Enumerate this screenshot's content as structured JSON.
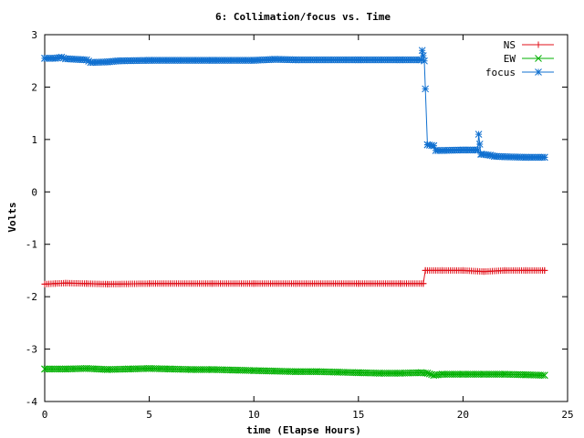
{
  "chart_data": {
    "type": "line",
    "title": "6: Collimation/focus vs. Time",
    "xlabel": "time (Elapse Hours)",
    "ylabel": "Volts",
    "xlim": [
      0,
      25
    ],
    "ylim": [
      -4,
      3
    ],
    "x_ticks": [
      "0",
      "5",
      "10",
      "15",
      "20",
      "25"
    ],
    "y_ticks": [
      "-4",
      "-3",
      "-2",
      "-1",
      "0",
      "1",
      "2",
      "3"
    ],
    "grid": false,
    "legend_position": "top-right",
    "series": [
      {
        "name": "NS",
        "color": "#e0101a",
        "marker": "plus",
        "points": [
          [
            0,
            -1.76
          ],
          [
            0.5,
            -1.75
          ],
          [
            1,
            -1.74
          ],
          [
            2,
            -1.75
          ],
          [
            3,
            -1.76
          ],
          [
            5,
            -1.75
          ],
          [
            8,
            -1.75
          ],
          [
            10,
            -1.75
          ],
          [
            12,
            -1.75
          ],
          [
            15,
            -1.75
          ],
          [
            17,
            -1.75
          ],
          [
            18.1,
            -1.75
          ],
          [
            18.2,
            -1.5
          ],
          [
            19,
            -1.5
          ],
          [
            20,
            -1.5
          ],
          [
            21,
            -1.52
          ],
          [
            22,
            -1.5
          ],
          [
            23,
            -1.5
          ],
          [
            23.9,
            -1.5
          ]
        ]
      },
      {
        "name": "EW",
        "color": "#00b000",
        "marker": "cross",
        "points": [
          [
            0,
            -3.38
          ],
          [
            1,
            -3.38
          ],
          [
            2,
            -3.37
          ],
          [
            3,
            -3.39
          ],
          [
            4,
            -3.38
          ],
          [
            5,
            -3.37
          ],
          [
            6,
            -3.38
          ],
          [
            7,
            -3.39
          ],
          [
            8,
            -3.39
          ],
          [
            9,
            -3.4
          ],
          [
            10,
            -3.41
          ],
          [
            11,
            -3.42
          ],
          [
            12,
            -3.43
          ],
          [
            13,
            -3.43
          ],
          [
            14,
            -3.44
          ],
          [
            15,
            -3.45
          ],
          [
            16,
            -3.46
          ],
          [
            17,
            -3.46
          ],
          [
            18,
            -3.45
          ],
          [
            18.3,
            -3.46
          ],
          [
            18.6,
            -3.5
          ],
          [
            19,
            -3.48
          ],
          [
            20,
            -3.48
          ],
          [
            21,
            -3.48
          ],
          [
            22,
            -3.48
          ],
          [
            23,
            -3.49
          ],
          [
            23.9,
            -3.5
          ]
        ]
      },
      {
        "name": "focus",
        "color": "#1070d0",
        "marker": "star",
        "points": [
          [
            0,
            2.55
          ],
          [
            0.5,
            2.55
          ],
          [
            0.8,
            2.57
          ],
          [
            1,
            2.54
          ],
          [
            2,
            2.52
          ],
          [
            2.2,
            2.47
          ],
          [
            3,
            2.48
          ],
          [
            3.5,
            2.5
          ],
          [
            5,
            2.51
          ],
          [
            8,
            2.51
          ],
          [
            10,
            2.51
          ],
          [
            11,
            2.53
          ],
          [
            12,
            2.52
          ],
          [
            15,
            2.52
          ],
          [
            17,
            2.52
          ],
          [
            18,
            2.52
          ],
          [
            18.05,
            2.7
          ],
          [
            18.15,
            2.5
          ],
          [
            18.3,
            0.9
          ],
          [
            18.6,
            0.88
          ],
          [
            18.7,
            0.79
          ],
          [
            19,
            0.79
          ],
          [
            20,
            0.8
          ],
          [
            20.7,
            0.8
          ],
          [
            20.75,
            1.1
          ],
          [
            20.85,
            0.72
          ],
          [
            21.3,
            0.7
          ],
          [
            21.5,
            0.68
          ],
          [
            22,
            0.67
          ],
          [
            23,
            0.66
          ],
          [
            23.9,
            0.66
          ]
        ]
      }
    ]
  }
}
